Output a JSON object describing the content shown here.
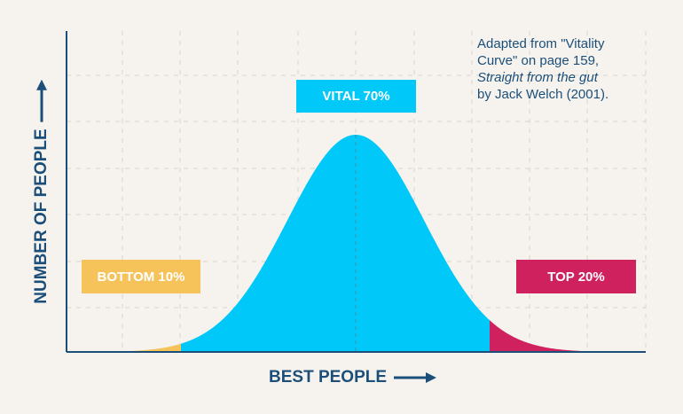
{
  "chart_data": {
    "type": "area",
    "title": "",
    "xlabel": "BEST PEOPLE",
    "ylabel": "NUMBER OF PEOPLE",
    "distribution": "normal",
    "segments": [
      {
        "name": "BOTTOM 10%",
        "share_percent": 10,
        "color": "#f6c35b"
      },
      {
        "name": "VITAL 70%",
        "share_percent": 70,
        "color": "#00c8f8"
      },
      {
        "name": "TOP 20%",
        "share_percent": 20,
        "color": "#d0215f"
      }
    ],
    "note": {
      "line1": "Adapted from \"Vitality",
      "line2": "Curve\" on page 159,",
      "line3": "Straight from the gut",
      "line4": "by Jack Welch (2001)."
    },
    "grid": true,
    "axis_color": "#1b4f7a",
    "grid_color": "#d9d4cc"
  }
}
